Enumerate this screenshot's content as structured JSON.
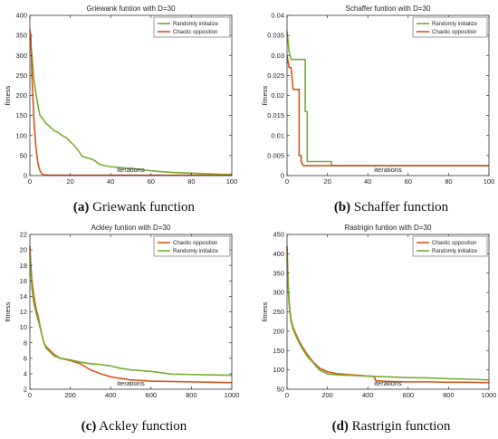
{
  "colors": {
    "randomly": "#77ac30",
    "chaotic": "#d95319",
    "axis": "#333333"
  },
  "chart_data": [
    {
      "type": "line",
      "title": "Griewank funtion with D=30",
      "xlabel": "iterations",
      "ylabel": "fitness",
      "xlim": [
        0,
        100
      ],
      "ylim": [
        0,
        400
      ],
      "xticks": [
        "0",
        "20",
        "40",
        "60",
        "80",
        "100"
      ],
      "yticks": [
        "0",
        "50",
        "100",
        "150",
        "200",
        "250",
        "300",
        "350",
        "400"
      ],
      "legend_position": "top-right",
      "caption_label": "(a)",
      "caption_text": " Griewank function",
      "series": [
        {
          "name": "Randomly initialize",
          "color_key": "randomly",
          "points": [
            [
              0,
              345
            ],
            [
              1,
              300
            ],
            [
              2,
              240
            ],
            [
              3,
              205
            ],
            [
              4,
              175
            ],
            [
              5,
              150
            ],
            [
              6,
              145
            ],
            [
              8,
              130
            ],
            [
              10,
              122
            ],
            [
              12,
              112
            ],
            [
              14,
              108
            ],
            [
              16,
              100
            ],
            [
              18,
              95
            ],
            [
              20,
              85
            ],
            [
              22,
              75
            ],
            [
              24,
              62
            ],
            [
              26,
              48
            ],
            [
              28,
              45
            ],
            [
              30,
              42
            ],
            [
              32,
              38
            ],
            [
              34,
              30
            ],
            [
              36,
              26
            ],
            [
              38,
              24
            ],
            [
              40,
              22
            ],
            [
              45,
              20
            ],
            [
              50,
              18
            ],
            [
              55,
              15
            ],
            [
              60,
              12
            ],
            [
              65,
              10
            ],
            [
              70,
              8
            ],
            [
              75,
              7
            ],
            [
              80,
              6
            ],
            [
              85,
              5
            ],
            [
              90,
              4
            ],
            [
              95,
              3
            ],
            [
              100,
              3
            ]
          ]
        },
        {
          "name": "Chaotic opposition",
          "color_key": "chaotic",
          "points": [
            [
              0,
              365
            ],
            [
              0.5,
              345
            ],
            [
              1,
              250
            ],
            [
              2,
              140
            ],
            [
              3,
              70
            ],
            [
              4,
              30
            ],
            [
              5,
              12
            ],
            [
              6,
              4
            ],
            [
              7,
              2
            ],
            [
              10,
              1
            ],
            [
              20,
              1
            ],
            [
              40,
              1
            ],
            [
              60,
              1
            ],
            [
              80,
              1
            ],
            [
              100,
              1
            ]
          ]
        }
      ]
    },
    {
      "type": "line",
      "title": "Schaffer funtion with D=30",
      "xlabel": "iterations",
      "ylabel": "fitness",
      "xlim": [
        0,
        100
      ],
      "ylim": [
        0,
        0.04
      ],
      "xticks": [
        "0",
        "20",
        "40",
        "60",
        "80",
        "100"
      ],
      "yticks": [
        "0",
        "0.005",
        "0.01",
        "0.015",
        "0.02",
        "0.025",
        "0.03",
        "0.035",
        "0.04"
      ],
      "legend_position": "top-right",
      "caption_label": "(b)",
      "caption_text": " Schaffer function",
      "series": [
        {
          "name": "Randomly initialize",
          "color_key": "randomly",
          "points": [
            [
              0,
              0.036
            ],
            [
              1,
              0.031
            ],
            [
              2,
              0.029
            ],
            [
              9,
              0.029
            ],
            [
              9,
              0.016
            ],
            [
              10,
              0.016
            ],
            [
              10,
              0.0035
            ],
            [
              13,
              0.0035
            ],
            [
              22,
              0.0035
            ],
            [
              22,
              0.0025
            ],
            [
              100,
              0.0025
            ]
          ]
        },
        {
          "name": "Chaotic opposition",
          "color_key": "chaotic",
          "points": [
            [
              0,
              0.03
            ],
            [
              1,
              0.027
            ],
            [
              2,
              0.027
            ],
            [
              3,
              0.0215
            ],
            [
              6,
              0.0215
            ],
            [
              6,
              0.005
            ],
            [
              7,
              0.005
            ],
            [
              7,
              0.0035
            ],
            [
              8,
              0.0025
            ],
            [
              100,
              0.0025
            ]
          ]
        }
      ]
    },
    {
      "type": "line",
      "title": "Ackley funtion with D=30",
      "xlabel": "iterations",
      "ylabel": "fitness",
      "xlim": [
        0,
        1000
      ],
      "ylim": [
        2,
        22
      ],
      "xticks": [
        "0",
        "200",
        "400",
        "600",
        "800",
        "1000"
      ],
      "yticks": [
        "2",
        "4",
        "6",
        "8",
        "10",
        "12",
        "14",
        "16",
        "18",
        "20",
        "22"
      ],
      "legend_position": "top-right",
      "caption_label": "(c)",
      "caption_text": " Ackley function",
      "series": [
        {
          "name": "Chaotic opposition",
          "color_key": "chaotic",
          "points": [
            [
              0,
              20.5
            ],
            [
              5,
              18
            ],
            [
              10,
              16
            ],
            [
              20,
              14
            ],
            [
              30,
              12.5
            ],
            [
              40,
              11.5
            ],
            [
              50,
              10.2
            ],
            [
              60,
              9
            ],
            [
              70,
              8
            ],
            [
              80,
              7.5
            ],
            [
              100,
              7
            ],
            [
              120,
              6.5
            ],
            [
              150,
              6
            ],
            [
              200,
              5.7
            ],
            [
              250,
              5.3
            ],
            [
              300,
              4.5
            ],
            [
              350,
              4
            ],
            [
              400,
              3.6
            ],
            [
              450,
              3.4
            ],
            [
              500,
              3.2
            ],
            [
              600,
              3.05
            ],
            [
              700,
              3
            ],
            [
              800,
              2.95
            ],
            [
              900,
              2.9
            ],
            [
              1000,
              2.85
            ]
          ]
        },
        {
          "name": "Randomly initialize",
          "color_key": "randomly",
          "points": [
            [
              0,
              19.5
            ],
            [
              5,
              17
            ],
            [
              10,
              15
            ],
            [
              20,
              13
            ],
            [
              30,
              12
            ],
            [
              40,
              11
            ],
            [
              50,
              10
            ],
            [
              60,
              9
            ],
            [
              70,
              8
            ],
            [
              80,
              7.3
            ],
            [
              100,
              6.8
            ],
            [
              120,
              6.3
            ],
            [
              150,
              6
            ],
            [
              200,
              5.8
            ],
            [
              250,
              5.5
            ],
            [
              300,
              5.3
            ],
            [
              350,
              5.2
            ],
            [
              400,
              5
            ],
            [
              450,
              4.7
            ],
            [
              500,
              4.5
            ],
            [
              600,
              4.3
            ],
            [
              700,
              3.95
            ],
            [
              800,
              3.9
            ],
            [
              900,
              3.85
            ],
            [
              1000,
              3.8
            ]
          ]
        }
      ]
    },
    {
      "type": "line",
      "title": "Rastrigin funtion with D=30",
      "xlabel": "iterations",
      "ylabel": "fitness",
      "xlim": [
        0,
        1000
      ],
      "ylim": [
        50,
        450
      ],
      "xticks": [
        "0",
        "200",
        "400",
        "600",
        "800",
        "1000"
      ],
      "yticks": [
        "50",
        "100",
        "150",
        "200",
        "250",
        "300",
        "350",
        "400",
        "450"
      ],
      "legend_position": "top-right",
      "caption_label": "(d)",
      "caption_text": " Rastrigin function",
      "series": [
        {
          "name": "Chaotic opposition",
          "color_key": "chaotic",
          "points": [
            [
              0,
              420
            ],
            [
              5,
              330
            ],
            [
              10,
              280
            ],
            [
              15,
              250
            ],
            [
              20,
              230
            ],
            [
              30,
              210
            ],
            [
              50,
              185
            ],
            [
              75,
              160
            ],
            [
              100,
              140
            ],
            [
              130,
              120
            ],
            [
              160,
              105
            ],
            [
              200,
              95
            ],
            [
              250,
              90
            ],
            [
              300,
              88
            ],
            [
              350,
              86
            ],
            [
              400,
              84
            ],
            [
              430,
              83
            ],
            [
              440,
              72
            ],
            [
              500,
              70
            ],
            [
              600,
              69
            ],
            [
              700,
              69
            ],
            [
              800,
              68
            ],
            [
              900,
              68
            ],
            [
              1000,
              67
            ]
          ]
        },
        {
          "name": "Randomly initialize",
          "color_key": "randomly",
          "points": [
            [
              0,
              390
            ],
            [
              5,
              320
            ],
            [
              10,
              270
            ],
            [
              15,
              245
            ],
            [
              20,
              225
            ],
            [
              30,
              205
            ],
            [
              50,
              180
            ],
            [
              75,
              155
            ],
            [
              100,
              135
            ],
            [
              130,
              118
            ],
            [
              160,
              100
            ],
            [
              200,
              90
            ],
            [
              250,
              87
            ],
            [
              300,
              86
            ],
            [
              350,
              85
            ],
            [
              400,
              84
            ],
            [
              450,
              83
            ],
            [
              500,
              82
            ],
            [
              600,
              80
            ],
            [
              700,
              79
            ],
            [
              760,
              78
            ],
            [
              800,
              77
            ],
            [
              900,
              76
            ],
            [
              1000,
              74
            ]
          ]
        }
      ]
    }
  ]
}
